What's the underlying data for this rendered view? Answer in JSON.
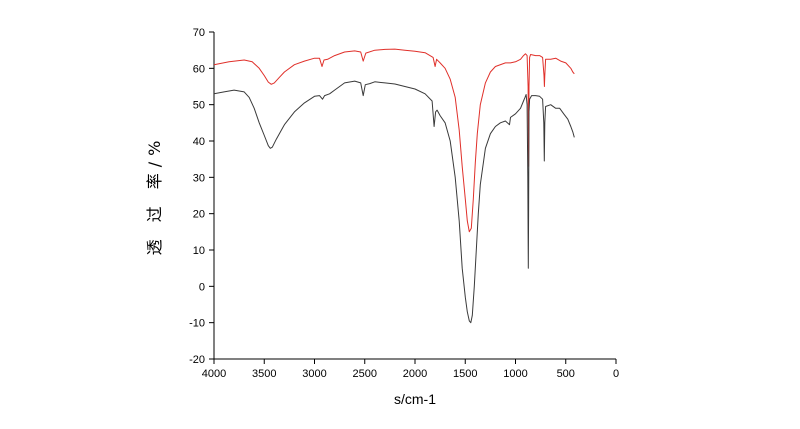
{
  "chart_data": {
    "type": "line",
    "xlabel": "s/cm-1",
    "ylabel": "透 过 率/%",
    "xlim": [
      4000,
      0
    ],
    "ylim": [
      -20,
      70
    ],
    "x_ticks": [
      "4000",
      "3500",
      "3000",
      "2500",
      "2000",
      "1500",
      "1000",
      "500",
      "0"
    ],
    "y_ticks": [
      "-20",
      "-10",
      "0",
      "10",
      "20",
      "30",
      "40",
      "50",
      "60",
      "70"
    ],
    "grid": false,
    "series": [
      {
        "color": "#e0302a",
        "points": [
          [
            4000,
            61.0
          ],
          [
            3850,
            61.8
          ],
          [
            3700,
            62.3
          ],
          [
            3620,
            61.8
          ],
          [
            3550,
            60.0
          ],
          [
            3500,
            58.0
          ],
          [
            3460,
            56.2
          ],
          [
            3430,
            55.6
          ],
          [
            3400,
            56.0
          ],
          [
            3350,
            57.5
          ],
          [
            3300,
            59.0
          ],
          [
            3200,
            61.0
          ],
          [
            3100,
            62.0
          ],
          [
            3000,
            62.8
          ],
          [
            2950,
            62.8
          ],
          [
            2925,
            60.5
          ],
          [
            2905,
            62.3
          ],
          [
            2870,
            62.5
          ],
          [
            2800,
            63.5
          ],
          [
            2700,
            64.5
          ],
          [
            2600,
            64.8
          ],
          [
            2540,
            64.5
          ],
          [
            2515,
            62.0
          ],
          [
            2490,
            64.2
          ],
          [
            2400,
            65.0
          ],
          [
            2300,
            65.2
          ],
          [
            2200,
            65.3
          ],
          [
            2100,
            65.0
          ],
          [
            2000,
            64.7
          ],
          [
            1900,
            64.3
          ],
          [
            1820,
            63.0
          ],
          [
            1800,
            60.5
          ],
          [
            1785,
            62.5
          ],
          [
            1750,
            61.5
          ],
          [
            1700,
            60.0
          ],
          [
            1650,
            57.0
          ],
          [
            1600,
            52.0
          ],
          [
            1560,
            43.0
          ],
          [
            1530,
            33.0
          ],
          [
            1500,
            24.0
          ],
          [
            1480,
            18.0
          ],
          [
            1460,
            15.0
          ],
          [
            1440,
            16.0
          ],
          [
            1420,
            24.0
          ],
          [
            1400,
            34.0
          ],
          [
            1380,
            42.0
          ],
          [
            1350,
            50.0
          ],
          [
            1300,
            56.0
          ],
          [
            1250,
            59.0
          ],
          [
            1200,
            60.5
          ],
          [
            1100,
            61.5
          ],
          [
            1050,
            61.5
          ],
          [
            1000,
            61.8
          ],
          [
            950,
            62.5
          ],
          [
            920,
            63.5
          ],
          [
            900,
            64.0
          ],
          [
            885,
            63.5
          ],
          [
            875,
            55.0
          ],
          [
            870,
            33.0
          ],
          [
            866,
            55.0
          ],
          [
            860,
            63.0
          ],
          [
            850,
            63.8
          ],
          [
            800,
            63.5
          ],
          [
            760,
            63.5
          ],
          [
            730,
            63.0
          ],
          [
            716,
            58.0
          ],
          [
            712,
            55.0
          ],
          [
            708,
            58.0
          ],
          [
            700,
            62.5
          ],
          [
            650,
            62.5
          ],
          [
            600,
            62.8
          ],
          [
            550,
            62.0
          ],
          [
            500,
            61.5
          ],
          [
            450,
            60.0
          ],
          [
            430,
            59.0
          ],
          [
            415,
            58.5
          ]
        ]
      },
      {
        "color": "#3a3a3a",
        "points": [
          [
            4000,
            53.0
          ],
          [
            3900,
            53.5
          ],
          [
            3800,
            54.0
          ],
          [
            3700,
            53.5
          ],
          [
            3650,
            52.0
          ],
          [
            3600,
            49.0
          ],
          [
            3550,
            45.0
          ],
          [
            3500,
            41.5
          ],
          [
            3460,
            38.7
          ],
          [
            3440,
            38.0
          ],
          [
            3420,
            38.3
          ],
          [
            3380,
            40.5
          ],
          [
            3300,
            44.5
          ],
          [
            3200,
            48.0
          ],
          [
            3100,
            50.5
          ],
          [
            3000,
            52.3
          ],
          [
            2950,
            52.5
          ],
          [
            2920,
            51.5
          ],
          [
            2900,
            52.5
          ],
          [
            2850,
            53.0
          ],
          [
            2800,
            54.0
          ],
          [
            2700,
            56.0
          ],
          [
            2600,
            56.5
          ],
          [
            2540,
            56.0
          ],
          [
            2515,
            52.5
          ],
          [
            2495,
            55.5
          ],
          [
            2450,
            55.8
          ],
          [
            2400,
            56.3
          ],
          [
            2300,
            56.0
          ],
          [
            2200,
            55.7
          ],
          [
            2100,
            55.0
          ],
          [
            2000,
            54.3
          ],
          [
            1900,
            53.0
          ],
          [
            1830,
            51.0
          ],
          [
            1810,
            44.0
          ],
          [
            1795,
            48.0
          ],
          [
            1780,
            48.5
          ],
          [
            1750,
            47.0
          ],
          [
            1700,
            45.0
          ],
          [
            1650,
            40.0
          ],
          [
            1600,
            30.0
          ],
          [
            1560,
            18.0
          ],
          [
            1530,
            5.0
          ],
          [
            1500,
            -3.0
          ],
          [
            1480,
            -7.0
          ],
          [
            1460,
            -9.5
          ],
          [
            1445,
            -10.0
          ],
          [
            1430,
            -8.0
          ],
          [
            1410,
            0.0
          ],
          [
            1390,
            10.0
          ],
          [
            1370,
            20.0
          ],
          [
            1350,
            28.0
          ],
          [
            1300,
            38.0
          ],
          [
            1250,
            42.0
          ],
          [
            1200,
            44.0
          ],
          [
            1150,
            45.0
          ],
          [
            1100,
            45.5
          ],
          [
            1060,
            44.5
          ],
          [
            1050,
            46.5
          ],
          [
            1000,
            47.5
          ],
          [
            950,
            49.0
          ],
          [
            920,
            51.0
          ],
          [
            905,
            52.0
          ],
          [
            895,
            52.8
          ],
          [
            885,
            50.0
          ],
          [
            878,
            30.0
          ],
          [
            873,
            5.0
          ],
          [
            870,
            20.0
          ],
          [
            866,
            48.0
          ],
          [
            860,
            51.5
          ],
          [
            840,
            52.5
          ],
          [
            800,
            52.5
          ],
          [
            760,
            52.3
          ],
          [
            730,
            51.5
          ],
          [
            718,
            45.0
          ],
          [
            713,
            34.5
          ],
          [
            708,
            45.0
          ],
          [
            700,
            49.5
          ],
          [
            650,
            50.0
          ],
          [
            600,
            49.0
          ],
          [
            560,
            49.0
          ],
          [
            520,
            47.5
          ],
          [
            480,
            46.0
          ],
          [
            450,
            44.0
          ],
          [
            430,
            42.5
          ],
          [
            415,
            41.0
          ]
        ]
      }
    ]
  }
}
